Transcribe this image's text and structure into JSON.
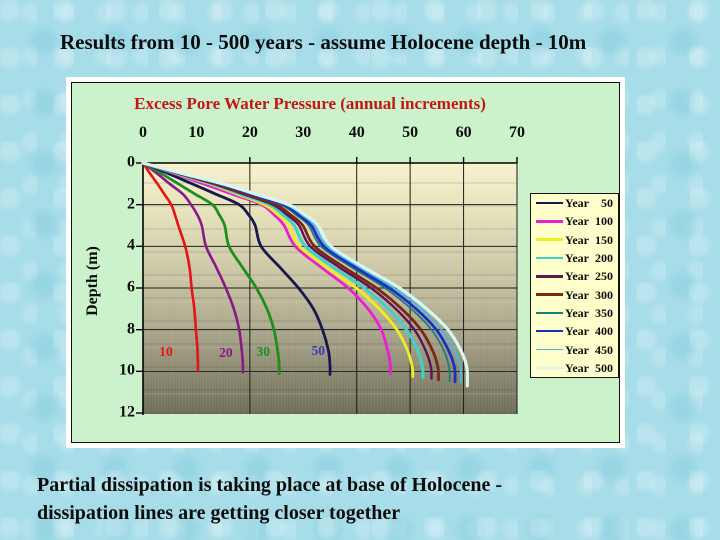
{
  "slide": {
    "title": "Results from 10 - 500 years - assume Holocene depth - 10m",
    "caption_lines": [
      "Partial dissipation is taking place at base of Holocene -",
      "dissipation lines are getting closer together"
    ]
  },
  "chart": {
    "title": "Excess Pore Water Pressure (annual increments)",
    "title_color": "#c21717",
    "y_axis_title": "Depth (m)",
    "x_tick_labels": [
      "0",
      "10",
      "20",
      "30",
      "40",
      "50",
      "60",
      "70"
    ],
    "y_tick_labels": [
      "0",
      "2",
      "4",
      "6",
      "8",
      "10",
      "12"
    ],
    "x_gridlines": [
      20,
      40,
      50,
      60,
      70
    ],
    "y_gridlines": [
      2,
      4,
      6,
      8,
      10
    ],
    "curve_labels": [
      {
        "text": "10",
        "color": "#e41414",
        "p": 4.3,
        "d": 9.05
      },
      {
        "text": "20",
        "color": "#8b188b",
        "p": 15.5,
        "d": 9.1
      },
      {
        "text": "30",
        "color": "#1e8f1e",
        "p": 22.5,
        "d": 9.05
      },
      {
        "text": "50",
        "color": "#3a3ab8",
        "p": 32.8,
        "d": 9.0
      }
    ]
  },
  "legend": {
    "entries": [
      {
        "label": "Year",
        "value": "50",
        "color": "#181850",
        "weight": 2.5
      },
      {
        "label": "Year",
        "value": "100",
        "color": "#ea1fd0",
        "weight": 2.5
      },
      {
        "label": "Year",
        "value": "150",
        "color": "#f0ee20",
        "weight": 2.5
      },
      {
        "label": "Year",
        "value": "200",
        "color": "#3ed2c6",
        "weight": 2.5
      },
      {
        "label": "Year",
        "value": "250",
        "color": "#5e1457",
        "weight": 2.5
      },
      {
        "label": "Year",
        "value": "300",
        "color": "#7d2718",
        "weight": 2.5
      },
      {
        "label": "Year",
        "value": "350",
        "color": "#1e7d74",
        "weight": 1.5
      },
      {
        "label": "Year",
        "value": "400",
        "color": "#1a2fc4",
        "weight": 2.5
      },
      {
        "label": "Year",
        "value": "450",
        "color": "#4fb6dc",
        "weight": 1.5
      },
      {
        "label": "Year",
        "value": "500",
        "color": "#d9f5ee",
        "weight": 2.5
      }
    ]
  },
  "chart_data": {
    "type": "line",
    "title": "Excess Pore Water Pressure (annual increments)",
    "xlabel": "Excess Pore Water Pressure",
    "ylabel": "Depth (m)",
    "x_range": [
      0,
      70
    ],
    "y_range": [
      0,
      12
    ],
    "y_inverted": true,
    "grid": true,
    "legend_position": "right",
    "series": [
      {
        "name": "Year 10",
        "color": "#e41414",
        "width": 2.6,
        "points": [
          [
            0,
            0
          ],
          [
            1.3,
            0.5
          ],
          [
            2.7,
            1
          ],
          [
            4.0,
            1.5
          ],
          [
            5.3,
            2
          ],
          [
            6.0,
            2.5
          ],
          [
            6.6,
            3
          ],
          [
            7.9,
            4
          ],
          [
            8.7,
            5
          ],
          [
            9.1,
            6
          ],
          [
            9.6,
            7
          ],
          [
            9.9,
            8
          ],
          [
            10.2,
            9
          ],
          [
            10.3,
            10
          ]
        ]
      },
      {
        "name": "Year 20",
        "color": "#8b188b",
        "width": 2.6,
        "points": [
          [
            0,
            0
          ],
          [
            2.6,
            0.5
          ],
          [
            5.0,
            1
          ],
          [
            7.5,
            1.5
          ],
          [
            9.0,
            2
          ],
          [
            10.2,
            2.5
          ],
          [
            11.0,
            3
          ],
          [
            11.8,
            4
          ],
          [
            13.7,
            5
          ],
          [
            15.5,
            6
          ],
          [
            17.0,
            7
          ],
          [
            18.0,
            8
          ],
          [
            18.5,
            9
          ],
          [
            18.7,
            9.7
          ],
          [
            18.7,
            10.05
          ]
        ]
      },
      {
        "name": "Year 30",
        "color": "#1e8f1e",
        "width": 2.8,
        "points": [
          [
            0,
            0
          ],
          [
            3.4,
            0.5
          ],
          [
            6.6,
            1
          ],
          [
            9.8,
            1.5
          ],
          [
            13.0,
            2
          ],
          [
            14.3,
            2.5
          ],
          [
            15.3,
            3
          ],
          [
            16.1,
            4
          ],
          [
            18.6,
            5
          ],
          [
            21.2,
            6
          ],
          [
            23.2,
            7
          ],
          [
            24.5,
            8
          ],
          [
            25.2,
            9
          ],
          [
            25.5,
            9.7
          ],
          [
            25.5,
            10.1
          ]
        ]
      },
      {
        "name": "Year 50",
        "color": "#181850",
        "width": 2.8,
        "points": [
          [
            0,
            0
          ],
          [
            4.7,
            0.5
          ],
          [
            9.2,
            1
          ],
          [
            13.7,
            1.5
          ],
          [
            18.0,
            2
          ],
          [
            19.8,
            2.5
          ],
          [
            21.0,
            3
          ],
          [
            22.1,
            4
          ],
          [
            25.6,
            5
          ],
          [
            29.1,
            6
          ],
          [
            31.9,
            7
          ],
          [
            33.6,
            8
          ],
          [
            34.7,
            9
          ],
          [
            35.0,
            9.7
          ],
          [
            35.0,
            10.15
          ]
        ]
      },
      {
        "name": "Year 100",
        "color": "#ea1fd0",
        "width": 2.8,
        "points": [
          [
            0,
            0
          ],
          [
            5.8,
            0.5
          ],
          [
            11.3,
            1
          ],
          [
            16.8,
            1.5
          ],
          [
            22.2,
            2
          ],
          [
            24.6,
            2.5
          ],
          [
            26.4,
            3
          ],
          [
            28.5,
            4
          ],
          [
            33.3,
            5
          ],
          [
            38.4,
            6
          ],
          [
            42.1,
            7
          ],
          [
            44.6,
            8
          ],
          [
            45.8,
            9
          ],
          [
            46.3,
            9.7
          ],
          [
            46.3,
            10.1
          ]
        ]
      },
      {
        "name": "Year 150",
        "color": "#f0ee20",
        "width": 2.8,
        "points": [
          [
            0,
            0
          ],
          [
            6.1,
            0.5
          ],
          [
            12.4,
            1
          ],
          [
            17.7,
            1.5
          ],
          [
            22.7,
            2
          ],
          [
            25.3,
            2.5
          ],
          [
            27.3,
            3
          ],
          [
            29.3,
            4
          ],
          [
            34.3,
            5
          ],
          [
            39.9,
            6
          ],
          [
            44.2,
            7
          ],
          [
            47.5,
            8
          ],
          [
            49.5,
            9
          ],
          [
            50.4,
            9.8
          ],
          [
            50.5,
            10.25
          ]
        ]
      },
      {
        "name": "Year 200",
        "color": "#3ed2c6",
        "width": 3.0,
        "points": [
          [
            0,
            0
          ],
          [
            6.3,
            0.5
          ],
          [
            12.8,
            1
          ],
          [
            18.3,
            1.5
          ],
          [
            23.6,
            2
          ],
          [
            26.2,
            2.5
          ],
          [
            28.3,
            3
          ],
          [
            30.4,
            4
          ],
          [
            35.6,
            5
          ],
          [
            41.4,
            6
          ],
          [
            45.9,
            7
          ],
          [
            49.3,
            8
          ],
          [
            51.4,
            9
          ],
          [
            52.3,
            9.8
          ],
          [
            52.4,
            10.3
          ]
        ]
      },
      {
        "name": "Year 250",
        "color": "#5e1457",
        "width": 2.4,
        "points": [
          [
            0,
            0
          ],
          [
            6.5,
            0.5
          ],
          [
            13.2,
            1
          ],
          [
            18.9,
            1.5
          ],
          [
            24.3,
            2
          ],
          [
            27.0,
            2.5
          ],
          [
            29.2,
            3
          ],
          [
            31.3,
            4
          ],
          [
            36.7,
            5
          ],
          [
            42.7,
            6
          ],
          [
            47.3,
            7
          ],
          [
            50.8,
            8
          ],
          [
            52.9,
            9
          ],
          [
            53.9,
            9.8
          ],
          [
            54.0,
            10.35
          ]
        ]
      },
      {
        "name": "Year 300",
        "color": "#7d2718",
        "width": 2.8,
        "points": [
          [
            0,
            0
          ],
          [
            6.6,
            0.5
          ],
          [
            13.5,
            1
          ],
          [
            19.4,
            1.5
          ],
          [
            24.9,
            2
          ],
          [
            27.7,
            2.5
          ],
          [
            29.9,
            3
          ],
          [
            32.1,
            4
          ],
          [
            37.6,
            5
          ],
          [
            43.7,
            6
          ],
          [
            48.4,
            7
          ],
          [
            52.0,
            8
          ],
          [
            54.2,
            9
          ],
          [
            55.2,
            9.8
          ],
          [
            55.3,
            10.4
          ]
        ]
      },
      {
        "name": "Year 350",
        "color": "#1e7d74",
        "width": 1.8,
        "points": [
          [
            0,
            0
          ],
          [
            6.9,
            0.5
          ],
          [
            14.1,
            1
          ],
          [
            20.1,
            1.5
          ],
          [
            25.8,
            2
          ],
          [
            28.7,
            2.5
          ],
          [
            31.0,
            3
          ],
          [
            33.3,
            4
          ],
          [
            39.0,
            5
          ],
          [
            45.3,
            6
          ],
          [
            50.2,
            7
          ],
          [
            54.0,
            8
          ],
          [
            56.3,
            9
          ],
          [
            57.3,
            9.8
          ],
          [
            57.4,
            10.45
          ]
        ]
      },
      {
        "name": "Year 400",
        "color": "#1a2fc4",
        "width": 2.8,
        "points": [
          [
            0,
            0
          ],
          [
            7.0,
            0.5
          ],
          [
            14.3,
            1
          ],
          [
            20.4,
            1.5
          ],
          [
            26.3,
            2
          ],
          [
            29.2,
            2.5
          ],
          [
            31.5,
            3
          ],
          [
            33.9,
            4
          ],
          [
            39.7,
            5
          ],
          [
            46.1,
            6
          ],
          [
            51.1,
            7
          ],
          [
            54.9,
            8
          ],
          [
            57.2,
            9
          ],
          [
            58.3,
            9.8
          ],
          [
            58.4,
            10.5
          ]
        ]
      },
      {
        "name": "Year 450",
        "color": "#4fb6dc",
        "width": 2.0,
        "points": [
          [
            0,
            0
          ],
          [
            7.1,
            0.5
          ],
          [
            14.6,
            1
          ],
          [
            20.8,
            1.5
          ],
          [
            26.8,
            2
          ],
          [
            29.8,
            2.5
          ],
          [
            32.1,
            3
          ],
          [
            34.5,
            4
          ],
          [
            40.5,
            5
          ],
          [
            47.0,
            6
          ],
          [
            52.1,
            7
          ],
          [
            55.9,
            8
          ],
          [
            58.3,
            9
          ],
          [
            59.4,
            9.8
          ],
          [
            59.5,
            10.55
          ]
        ]
      },
      {
        "name": "Year 500",
        "color": "#d9f5ee",
        "width": 3.2,
        "points": [
          [
            0,
            0
          ],
          [
            7.3,
            0.5
          ],
          [
            14.9,
            1
          ],
          [
            21.2,
            1.5
          ],
          [
            27.3,
            2
          ],
          [
            30.4,
            2.5
          ],
          [
            32.8,
            3
          ],
          [
            35.2,
            4
          ],
          [
            41.3,
            5
          ],
          [
            48.0,
            6
          ],
          [
            53.1,
            7
          ],
          [
            57.1,
            8
          ],
          [
            59.5,
            9
          ],
          [
            60.6,
            9.8
          ],
          [
            60.7,
            10.7
          ]
        ]
      }
    ]
  }
}
